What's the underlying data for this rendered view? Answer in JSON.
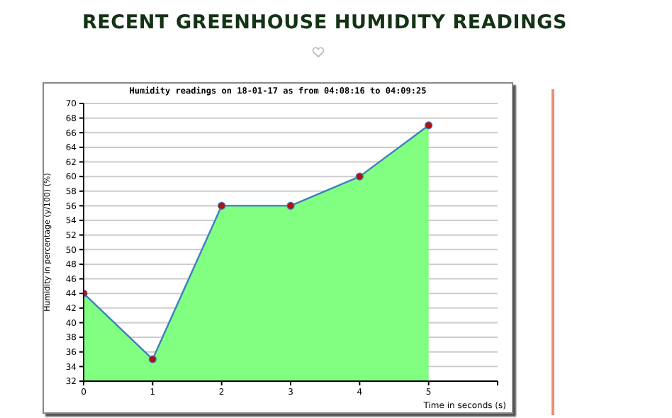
{
  "chart_data": {
    "type": "area",
    "title": "RECENT GREENHOUSE HUMIDITY READINGS",
    "subtitle": "Humidity readings on 18-01-17 as from 04:08:16 to 04:09:25",
    "xlabel": "Time in seconds (s)",
    "ylabel": "Humidity in percentage (y/100) (%)",
    "x": [
      0,
      1,
      2,
      3,
      4,
      5
    ],
    "series": [
      {
        "color": "#80ff80",
        "values": [
          44,
          35,
          56,
          56,
          60,
          67
        ]
      },
      {
        "type": "line",
        "color": "#3f7fbf",
        "marker": "circle",
        "values": [
          44,
          35,
          56,
          56,
          60,
          67
        ]
      }
    ],
    "xlim": [
      0,
      6
    ],
    "xticks": [
      0,
      1,
      2,
      3,
      4,
      5,
      {
        "value": 6,
        "label": null
      }
    ],
    "ylim": [
      32,
      70
    ],
    "yticks": [
      32,
      34,
      36,
      38,
      40,
      42,
      44,
      46,
      48,
      50,
      52,
      54,
      56,
      58,
      60,
      62,
      64,
      66,
      68,
      70
    ],
    "grid": "y"
  }
}
